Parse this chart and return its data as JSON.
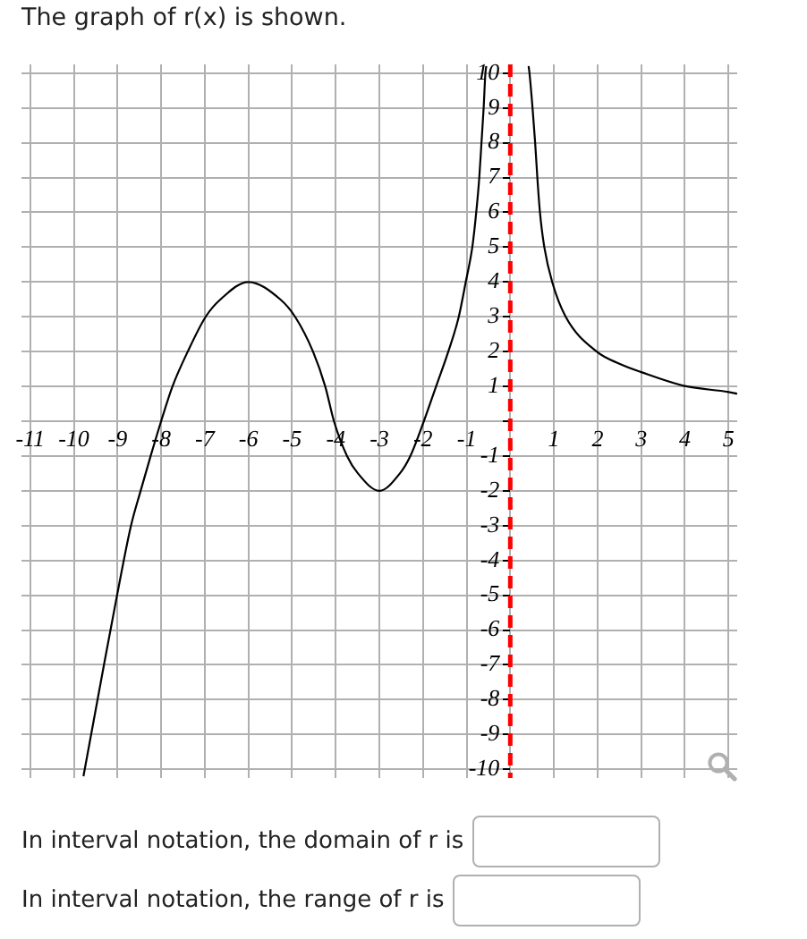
{
  "chart_data": {
    "type": "line",
    "title": "The graph of r(x) is shown.",
    "annotations": [
      "In interval notation, the domain of r is",
      "In interval notation, the range of r is"
    ],
    "series": [
      {
        "color": "#000000",
        "x": [
          -9.78,
          -9.31,
          -9.01,
          -8.69,
          -8.47,
          -8.24,
          -8,
          -7.74,
          -7.39,
          -6.98,
          -6.64,
          -6,
          -5.27,
          -4.93,
          -4.52,
          -4.24,
          -4.04,
          -3.74,
          -3.49,
          -3,
          -2.53,
          -2.29,
          -1.98,
          -1.7,
          -1.42,
          -1.18,
          -1.02,
          -0.87,
          -0.78,
          -0.71,
          -0.66,
          -0.61,
          -0.57,
          -0.55,
          0,
          0.42,
          0.44,
          0.51,
          0.57,
          0.62,
          0.68,
          0.78,
          0.96,
          1.27,
          1.98,
          2.5,
          3,
          4,
          5,
          5.2
        ],
        "values": [
          -10.2,
          -7,
          -5,
          -3,
          -2,
          -1,
          0,
          1,
          2,
          3,
          3.5,
          4,
          3.5,
          3,
          2,
          1,
          0,
          -1,
          -1.5,
          -2,
          -1.5,
          -1,
          0,
          1,
          2,
          3,
          4,
          5,
          6,
          7,
          8,
          9,
          10,
          10.2,
          null,
          10.2,
          10,
          9,
          8,
          7,
          6,
          5,
          4,
          3,
          2,
          1.65,
          1.41,
          1.01,
          0.84,
          0.79
        ]
      }
    ],
    "xlim": [
      -11.2,
      5.2
    ],
    "ylim": [
      -10.25,
      10.25
    ],
    "xticks": [
      -11,
      -10,
      -9,
      -8,
      -7,
      -6,
      -5,
      -4,
      -3,
      -2,
      -1,
      {
        "value": 0,
        "label": null
      },
      1,
      2,
      3,
      4,
      5
    ],
    "yticks": [
      -10,
      -9,
      -8,
      -7,
      -6,
      -5,
      -4,
      -3,
      -2,
      -1,
      {
        "value": 0,
        "label": null
      },
      1,
      2,
      3,
      4,
      5,
      6,
      7,
      8,
      9,
      10
    ],
    "ref_lines": [
      {
        "axis": "x",
        "value": 0,
        "color": "#ff0000",
        "line_style": "dashed"
      }
    ],
    "grid": true,
    "marker": "none",
    "line_style": "solid"
  }
}
